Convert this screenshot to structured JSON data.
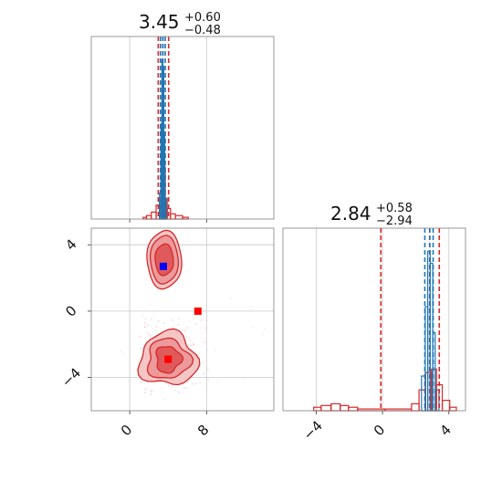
{
  "colors": {
    "red": "#d62728",
    "blue": "#1f77b4",
    "marker_blue": "#0000ff",
    "marker_red": "#ff0000",
    "fill_light": "#f4c6c6",
    "fill_mid": "#ec9a9b",
    "fill_dark": "#e05a5c"
  },
  "chart_data": [
    {
      "type": "histogram",
      "panel": "param1-marginal",
      "title_value": "3.45",
      "title_plus": "+0.60",
      "title_minus": "−0.48",
      "xlim": [
        -4,
        15
      ],
      "x_ticks": [
        0,
        8
      ],
      "red_quantile_lines": [
        2.97,
        3.45,
        4.05
      ],
      "blue_quantile_lines": [
        3.2,
        3.45,
        3.7
      ],
      "series": [
        {
          "color": "red",
          "bins": [
            {
              "x": 1.5,
              "h": 0.01
            },
            {
              "x": 2.0,
              "h": 0.02
            },
            {
              "x": 2.5,
              "h": 0.04
            },
            {
              "x": 3.0,
              "h": 0.08
            },
            {
              "x": 3.2,
              "h": 0.12
            },
            {
              "x": 3.4,
              "h": 0.32
            },
            {
              "x": 3.6,
              "h": 0.3
            },
            {
              "x": 3.8,
              "h": 0.12
            },
            {
              "x": 4.0,
              "h": 0.06
            },
            {
              "x": 4.5,
              "h": 0.03
            },
            {
              "x": 5.0,
              "h": 0.02
            },
            {
              "x": 6.0,
              "h": 0.01
            }
          ]
        },
        {
          "color": "blue",
          "bins": [
            {
              "x": 3.2,
              "h": 0.15
            },
            {
              "x": 3.3,
              "h": 0.55
            },
            {
              "x": 3.4,
              "h": 0.92
            },
            {
              "x": 3.5,
              "h": 0.88
            },
            {
              "x": 3.6,
              "h": 0.5
            },
            {
              "x": 3.7,
              "h": 0.12
            }
          ]
        }
      ]
    },
    {
      "type": "scatter",
      "panel": "joint-2d",
      "xlim": [
        -4,
        15
      ],
      "ylim": [
        -6,
        5
      ],
      "x_ticks": [
        0,
        8
      ],
      "y_ticks": [
        -4,
        0,
        4
      ],
      "markers": [
        {
          "x": 3.5,
          "y": 2.7,
          "color": "marker_blue"
        },
        {
          "x": 7.1,
          "y": 0.0,
          "color": "marker_red"
        },
        {
          "x": 4.0,
          "y": -2.9,
          "color": "marker_red"
        }
      ],
      "contour_modes": [
        {
          "cx": 3.6,
          "cy": 3.1,
          "rx": [
            1.8,
            1.45,
            0.95
          ],
          "ry": [
            1.75,
            1.45,
            0.95
          ]
        },
        {
          "cx": 4.0,
          "cy": -2.9,
          "rx": [
            3.0,
            2.2,
            1.3
          ],
          "ry": [
            1.6,
            1.2,
            0.8
          ]
        }
      ]
    },
    {
      "type": "histogram",
      "panel": "param2-marginal",
      "title_value": "2.84",
      "title_plus": "+0.58",
      "title_minus": "−2.94",
      "xlim": [
        -6,
        5
      ],
      "x_ticks": [
        -4,
        0,
        4
      ],
      "red_quantile_lines": [
        -0.1,
        2.84,
        3.42
      ],
      "blue_quantile_lines": [
        2.55,
        2.85,
        3.05
      ],
      "series": [
        {
          "color": "red",
          "bins": [
            {
              "x": -4.0,
              "h": 0.02
            },
            {
              "x": -3.4,
              "h": 0.03
            },
            {
              "x": -2.8,
              "h": 0.04
            },
            {
              "x": -2.3,
              "h": 0.03
            },
            {
              "x": -1.8,
              "h": 0.02
            },
            {
              "x": -1.2,
              "h": 0.01
            },
            {
              "x": 1.5,
              "h": 0.01
            },
            {
              "x": 2.0,
              "h": 0.04
            },
            {
              "x": 2.4,
              "h": 0.12
            },
            {
              "x": 2.8,
              "h": 0.22
            },
            {
              "x": 3.1,
              "h": 0.24
            },
            {
              "x": 3.4,
              "h": 0.15
            },
            {
              "x": 3.8,
              "h": 0.06
            },
            {
              "x": 4.3,
              "h": 0.02
            }
          ]
        },
        {
          "color": "blue",
          "bins": [
            {
              "x": 2.5,
              "h": 0.2
            },
            {
              "x": 2.65,
              "h": 0.6
            },
            {
              "x": 2.8,
              "h": 0.92
            },
            {
              "x": 2.95,
              "h": 0.85
            },
            {
              "x": 3.1,
              "h": 0.45
            },
            {
              "x": 3.25,
              "h": 0.12
            }
          ]
        }
      ]
    }
  ]
}
